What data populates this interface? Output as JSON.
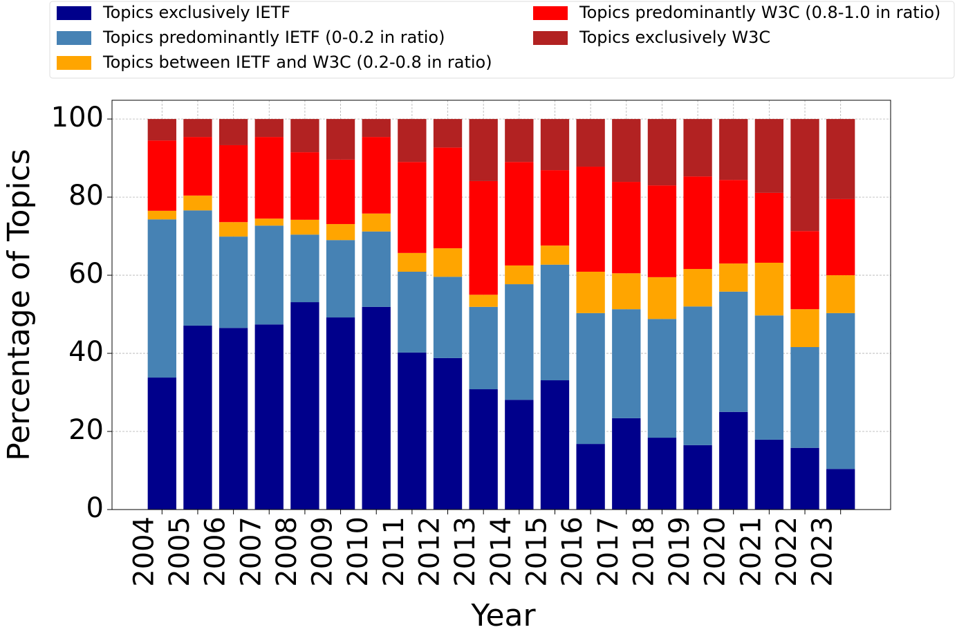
{
  "chart_data": {
    "type": "stacked_bar",
    "x_label": "Year",
    "y_label": "Percentage of Topics",
    "categories": [
      "2004",
      "2005",
      "2006",
      "2007",
      "2008",
      "2009",
      "2010",
      "2011",
      "2012",
      "2013",
      "2014",
      "2015",
      "2016",
      "2017",
      "2018",
      "2019",
      "2020",
      "2021",
      "2022",
      "2023"
    ],
    "series": [
      {
        "name": "Topics exclusively IETF",
        "color": "#00008b",
        "values": [
          33.8,
          47.1,
          46.5,
          47.4,
          53.1,
          49.2,
          51.9,
          40.2,
          38.8,
          30.8,
          28.1,
          33.1,
          16.8,
          23.4,
          18.4,
          16.5,
          25.0,
          17.9,
          15.8,
          10.4
        ]
      },
      {
        "name": "Topics predominantly IETF (0-0.2 in ratio)",
        "color": "#4682b4",
        "values": [
          40.5,
          29.5,
          23.4,
          25.3,
          17.3,
          19.8,
          19.3,
          20.7,
          20.8,
          21.1,
          29.6,
          29.6,
          33.5,
          27.9,
          30.4,
          35.5,
          30.8,
          31.8,
          25.8,
          39.9
        ]
      },
      {
        "name": "Topics between IETF and W3C (0.2-0.8 in ratio)",
        "color": "#ffa500",
        "values": [
          2.2,
          3.8,
          3.7,
          1.8,
          3.8,
          4.1,
          4.6,
          4.8,
          7.3,
          3.1,
          4.8,
          4.9,
          10.6,
          9.2,
          10.7,
          9.6,
          7.2,
          13.5,
          9.7,
          9.7
        ]
      },
      {
        "name": "Topics predominantly W3C (0.8-1.0 in ratio)",
        "color": "#ff0000",
        "values": [
          18.0,
          15.0,
          19.7,
          20.9,
          17.3,
          16.5,
          19.6,
          23.3,
          25.8,
          29.1,
          26.5,
          19.3,
          26.9,
          23.4,
          23.5,
          23.7,
          21.4,
          17.9,
          20.0,
          19.5
        ]
      },
      {
        "name": "Topics exclusively W3C",
        "color": "#b22222",
        "values": [
          5.5,
          4.6,
          6.7,
          4.6,
          8.5,
          10.4,
          4.6,
          11.0,
          7.3,
          15.9,
          11.0,
          13.1,
          12.2,
          16.1,
          17.0,
          14.7,
          15.6,
          18.9,
          28.7,
          20.5
        ]
      }
    ],
    "ylim": [
      0,
      104.8
    ],
    "yticks": [
      0,
      20,
      40,
      60,
      80,
      100
    ],
    "grid": true,
    "legend": "top"
  }
}
